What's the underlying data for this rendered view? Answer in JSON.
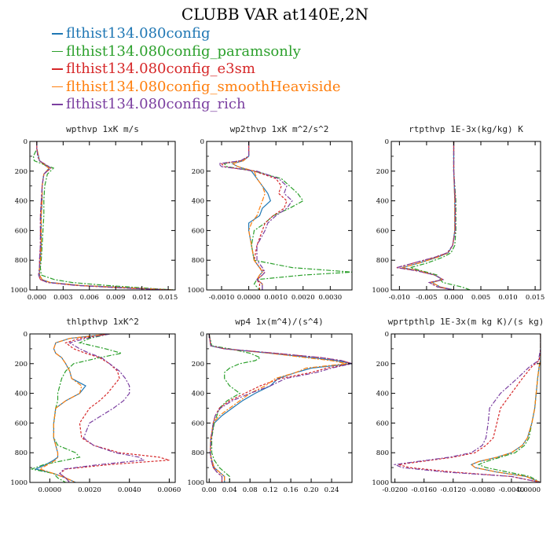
{
  "title": "CLUBB VAR at140E,2N",
  "legend": [
    {
      "label": "flthist134.080config",
      "color": "#1f77b4"
    },
    {
      "label": "flthist134.080config_paramsonly",
      "color": "#2ca02c"
    },
    {
      "label": "flthist134.080config_e3sm",
      "color": "#d62728"
    },
    {
      "label": "flthist134.080config_smoothHeaviside",
      "color": "#ff7f0e"
    },
    {
      "label": "flthist134.080config_rich",
      "color": "#7b3fa0"
    }
  ],
  "chart_data": [
    {
      "type": "line",
      "title": "wpthvp  1xK m/s",
      "xlim": [
        -0.0008,
        0.0158
      ],
      "ylim": [
        1000,
        0
      ],
      "xticks": [
        0.0,
        0.003,
        0.006,
        0.009,
        0.012,
        0.015
      ],
      "xtick_labels": [
        "0.000",
        "0.003",
        "0.006",
        "0.009",
        "0.012",
        "0.015"
      ],
      "yticks": [
        0,
        200,
        400,
        600,
        800,
        1000
      ],
      "y": [
        0,
        50,
        100,
        130,
        160,
        180,
        220,
        300,
        400,
        500,
        600,
        700,
        800,
        850,
        900,
        930,
        950,
        970,
        990,
        1000
      ],
      "series": [
        {
          "values": [
            0.0,
            0.0,
            0.0002,
            0.0003,
            0.0009,
            0.0014,
            0.0008,
            0.0006,
            0.0006,
            0.0005,
            0.0005,
            0.0005,
            0.0004,
            0.0003,
            0.0003,
            0.0006,
            0.0015,
            0.005,
            0.012,
            0.0155
          ]
        },
        {
          "values": [
            0.0,
            0.0,
            -0.0004,
            -0.0003,
            0.001,
            0.0019,
            0.0012,
            0.0009,
            0.0008,
            0.0008,
            0.0007,
            0.0006,
            0.0005,
            0.0004,
            0.0005,
            0.002,
            0.004,
            0.008,
            0.013,
            0.0156
          ]
        },
        {
          "values": [
            0.0,
            0.0,
            0.0001,
            0.0003,
            0.0011,
            0.0016,
            0.0008,
            0.0006,
            0.0005,
            0.0004,
            0.0004,
            0.0004,
            0.0003,
            0.0003,
            0.0002,
            0.0004,
            0.0012,
            0.0045,
            0.011,
            0.0153
          ]
        },
        {
          "values": [
            0.0,
            0.0,
            0.0002,
            0.0003,
            0.0009,
            0.0014,
            0.0008,
            0.0006,
            0.0006,
            0.0005,
            0.0005,
            0.0005,
            0.0004,
            0.0003,
            0.0003,
            0.0006,
            0.0015,
            0.005,
            0.012,
            0.0155
          ]
        },
        {
          "values": [
            0.0,
            0.0,
            0.0001,
            0.0003,
            0.0011,
            0.0016,
            0.0008,
            0.0006,
            0.0005,
            0.0004,
            0.0004,
            0.0004,
            0.0003,
            0.0003,
            0.0002,
            0.0004,
            0.0012,
            0.0045,
            0.011,
            0.0153
          ]
        }
      ]
    },
    {
      "type": "line",
      "title": "wp2thvp  1xK m^2/s^2",
      "xlim": [
        -0.00155,
        0.0038
      ],
      "ylim": [
        1000,
        0
      ],
      "xticks": [
        -0.001,
        0.0,
        0.001,
        0.002,
        0.003
      ],
      "xtick_labels": [
        "-0.0010",
        "0.0000",
        "0.0010",
        "0.0020",
        "0.0030"
      ],
      "yticks": [
        0,
        200,
        400,
        600,
        800,
        1000
      ],
      "y": [
        0,
        100,
        130,
        150,
        170,
        200,
        250,
        300,
        350,
        400,
        450,
        500,
        550,
        600,
        700,
        800,
        850,
        880,
        900,
        930,
        960,
        1000
      ],
      "series": [
        {
          "values": [
            0.0,
            0.0,
            -0.0002,
            -0.0006,
            -0.0004,
            0.0001,
            0.0003,
            0.0005,
            0.0007,
            0.0008,
            0.0005,
            0.0004,
            0.0,
            0.0,
            0.0001,
            0.0002,
            0.0004,
            0.0005,
            0.0004,
            0.0003,
            0.0005,
            0.0005
          ]
        },
        {
          "values": [
            0.0,
            0.0,
            -0.0003,
            -0.0009,
            -0.0008,
            0.0002,
            0.0012,
            0.0015,
            0.0018,
            0.002,
            0.0015,
            0.0009,
            0.0006,
            0.0002,
            0.0001,
            0.0002,
            0.0016,
            0.0038,
            0.002,
            0.0003,
            0.0002,
            0.0004
          ]
        },
        {
          "values": [
            0.0,
            0.0,
            -0.0003,
            -0.001,
            -0.0009,
            0.0002,
            0.001,
            0.0012,
            0.0011,
            0.0014,
            0.0013,
            0.0009,
            0.0006,
            0.0005,
            0.0003,
            0.0002,
            0.0004,
            0.0006,
            0.0005,
            0.0003,
            0.0004,
            0.0004
          ]
        },
        {
          "values": [
            0.0,
            0.0,
            -0.0002,
            -0.0006,
            -0.0004,
            0.0002,
            0.0003,
            0.0005,
            0.0006,
            0.0005,
            0.0004,
            0.0003,
            0.0001,
            0.0,
            0.0001,
            0.0002,
            0.0004,
            0.0005,
            0.0004,
            0.0003,
            0.0005,
            0.0005
          ]
        },
        {
          "values": [
            0.0,
            0.0,
            -0.0003,
            -0.0011,
            -0.001,
            0.0003,
            0.0011,
            0.0014,
            0.0013,
            0.0016,
            0.0014,
            0.001,
            0.0007,
            0.0006,
            0.0003,
            0.0003,
            0.0005,
            0.0006,
            0.0005,
            0.0003,
            0.0005,
            0.0005
          ]
        }
      ]
    },
    {
      "type": "line",
      "title": "rtpthvp  1E-3x(kg/kg) K",
      "xlim": [
        -0.0115,
        0.016
      ],
      "ylim": [
        1000,
        0
      ],
      "xticks": [
        -0.01,
        -0.005,
        0.0,
        0.005,
        0.01,
        0.015
      ],
      "xtick_labels": [
        "-0.010",
        "-0.005",
        "0.000",
        "0.005",
        "0.010",
        "0.015"
      ],
      "yticks": [
        0,
        200,
        400,
        600,
        800,
        1000
      ],
      "y": [
        0,
        200,
        400,
        600,
        700,
        750,
        780,
        820,
        850,
        870,
        900,
        930,
        950,
        980,
        1000
      ],
      "series": [
        {
          "values": [
            0.0,
            0.0,
            0.0002,
            0.0002,
            -0.0002,
            -0.001,
            -0.003,
            -0.0065,
            -0.0095,
            -0.0065,
            -0.0035,
            -0.002,
            -0.004,
            -0.0025,
            0.0
          ]
        },
        {
          "values": [
            0.0,
            0.0,
            0.0004,
            0.0004,
            0.0002,
            -0.0005,
            -0.002,
            -0.005,
            -0.008,
            -0.006,
            -0.003,
            -0.0025,
            -0.002,
            0.0015,
            0.003
          ]
        },
        {
          "values": [
            0.0,
            0.0,
            0.0003,
            0.0003,
            -0.0002,
            -0.0012,
            -0.0035,
            -0.0075,
            -0.0105,
            -0.007,
            -0.0035,
            -0.002,
            -0.0045,
            -0.003,
            0.0
          ]
        },
        {
          "values": [
            0.0,
            0.0,
            0.0002,
            0.0002,
            -0.0002,
            -0.001,
            -0.003,
            -0.0065,
            -0.0095,
            -0.0065,
            -0.0035,
            -0.002,
            -0.004,
            -0.0025,
            0.0
          ]
        },
        {
          "values": [
            0.0,
            0.0,
            0.0003,
            0.0003,
            -0.0002,
            -0.0012,
            -0.0035,
            -0.0075,
            -0.0105,
            -0.007,
            -0.0035,
            -0.002,
            -0.0045,
            -0.003,
            0.0
          ]
        }
      ]
    },
    {
      "type": "line",
      "title": "thlpthvp  1xK^2",
      "xlim": [
        -0.001,
        0.0063
      ],
      "ylim": [
        1000,
        0
      ],
      "xticks": [
        0.0,
        0.002,
        0.004,
        0.006
      ],
      "xtick_labels": [
        "0.0000",
        "0.0020",
        "0.0040",
        "0.0060"
      ],
      "yticks": [
        0,
        200,
        400,
        600,
        800,
        1000
      ],
      "y": [
        0,
        30,
        60,
        100,
        130,
        160,
        200,
        250,
        300,
        350,
        400,
        450,
        500,
        600,
        700,
        750,
        800,
        830,
        850,
        880,
        910,
        940,
        970,
        1000
      ],
      "series": [
        {
          "values": [
            0.003,
            0.001,
            0.0003,
            0.0002,
            0.0003,
            0.0006,
            0.0008,
            0.001,
            0.0011,
            0.0018,
            0.0015,
            0.0008,
            0.0003,
            0.0002,
            0.0002,
            0.0003,
            0.0004,
            0.0004,
            0.0002,
            -0.0002,
            -0.0007,
            0.0002,
            0.0008,
            0.0013
          ]
        },
        {
          "values": [
            0.003,
            0.002,
            0.0015,
            0.0028,
            0.0036,
            0.0025,
            0.0012,
            0.0008,
            0.0006,
            0.0005,
            0.0004,
            0.0004,
            0.0003,
            0.0002,
            0.0002,
            0.0004,
            0.0013,
            0.0015,
            0.0008,
            -0.0003,
            -0.0009,
            0.0002,
            0.0004,
            0.0008
          ]
        },
        {
          "values": [
            0.003,
            0.0015,
            0.0008,
            0.0012,
            0.0018,
            0.0025,
            0.003,
            0.0034,
            0.0035,
            0.0032,
            0.0029,
            0.0025,
            0.002,
            0.0015,
            0.0016,
            0.0022,
            0.0035,
            0.0055,
            0.006,
            0.003,
            0.0008,
            0.0005,
            0.0008,
            0.001
          ]
        },
        {
          "values": [
            0.003,
            0.001,
            0.0003,
            0.0002,
            0.0003,
            0.0006,
            0.0008,
            0.001,
            0.0011,
            0.0016,
            0.0015,
            0.0008,
            0.0003,
            0.0002,
            0.0002,
            0.0003,
            0.0004,
            0.0004,
            0.0003,
            -0.0001,
            -0.0005,
            0.0002,
            0.0008,
            0.0013
          ]
        },
        {
          "values": [
            0.003,
            0.0018,
            0.001,
            0.0015,
            0.002,
            0.0026,
            0.003,
            0.0035,
            0.0038,
            0.004,
            0.004,
            0.0037,
            0.0032,
            0.002,
            0.0017,
            0.0022,
            0.0033,
            0.0045,
            0.0047,
            0.0025,
            0.0007,
            0.0005,
            0.0008,
            0.001
          ]
        }
      ]
    },
    {
      "type": "line",
      "title": "wp4  1x(m^4)/(s^4)",
      "xlim": [
        -0.005,
        0.28
      ],
      "ylim": [
        1000,
        0
      ],
      "xticks": [
        0.0,
        0.04,
        0.08,
        0.12,
        0.16,
        0.2,
        0.24
      ],
      "xtick_labels": [
        "0.00",
        "0.04",
        "0.08",
        "0.12",
        "0.16",
        "0.20",
        "0.24"
      ],
      "yticks": [
        0,
        200,
        400,
        600,
        800,
        1000
      ],
      "y": [
        0,
        80,
        100,
        130,
        160,
        180,
        200,
        230,
        260,
        300,
        350,
        400,
        450,
        500,
        550,
        600,
        700,
        800,
        850,
        900,
        930,
        960,
        1000
      ],
      "series": [
        {
          "values": [
            0.0,
            0.003,
            0.03,
            0.12,
            0.2,
            0.25,
            0.28,
            0.2,
            0.17,
            0.135,
            0.12,
            0.09,
            0.065,
            0.045,
            0.025,
            0.01,
            0.003,
            0.002,
            0.005,
            0.01,
            0.02,
            0.03,
            0.03
          ]
        },
        {
          "values": [
            0.0,
            0.005,
            0.04,
            0.08,
            0.1,
            0.09,
            0.06,
            0.04,
            0.03,
            0.03,
            0.04,
            0.06,
            0.035,
            0.02,
            0.015,
            0.01,
            0.005,
            0.005,
            0.01,
            0.02,
            0.03,
            0.04,
            0.04
          ]
        },
        {
          "values": [
            0.0,
            0.003,
            0.03,
            0.13,
            0.22,
            0.26,
            0.28,
            0.23,
            0.2,
            0.14,
            0.1,
            0.07,
            0.04,
            0.02,
            0.012,
            0.008,
            0.004,
            0.002,
            0.004,
            0.008,
            0.015,
            0.025,
            0.025
          ]
        },
        {
          "values": [
            0.0,
            0.003,
            0.03,
            0.12,
            0.19,
            0.24,
            0.27,
            0.19,
            0.17,
            0.13,
            0.11,
            0.08,
            0.06,
            0.04,
            0.02,
            0.008,
            0.003,
            0.002,
            0.005,
            0.01,
            0.02,
            0.03,
            0.03
          ]
        },
        {
          "values": [
            0.0,
            0.003,
            0.03,
            0.13,
            0.22,
            0.26,
            0.28,
            0.24,
            0.21,
            0.15,
            0.12,
            0.08,
            0.045,
            0.022,
            0.012,
            0.008,
            0.004,
            0.002,
            0.004,
            0.008,
            0.015,
            0.025,
            0.025
          ]
        }
      ]
    },
    {
      "type": "line",
      "title": "wprtpthlp  1E-3x(m kg K)/(s kg)",
      "xlim": [
        -0.0205,
        0.0
      ],
      "ylim": [
        1000,
        0
      ],
      "xticks": [
        -0.02,
        -0.016,
        -0.012,
        -0.008,
        -0.004,
        0.0
      ],
      "xtick_labels": [
        "-0.0200",
        "-0.0160",
        "-0.0120",
        "-0.0080",
        "-0.0040",
        "0.0000"
      ],
      "yticks": [
        0,
        200,
        400,
        600,
        800,
        1000
      ],
      "y": [
        0,
        100,
        180,
        220,
        300,
        400,
        500,
        600,
        700,
        750,
        800,
        830,
        860,
        880,
        900,
        930,
        960,
        1000
      ],
      "series": [
        {
          "values": [
            0.0,
            0.0,
            0.0,
            -0.0002,
            -0.0004,
            -0.0006,
            -0.0008,
            -0.0012,
            -0.0018,
            -0.0025,
            -0.004,
            -0.006,
            -0.0085,
            -0.0095,
            -0.009,
            -0.006,
            -0.002,
            0.0
          ]
        },
        {
          "values": [
            0.0,
            0.0,
            0.0,
            -0.0002,
            -0.0004,
            -0.0006,
            -0.0008,
            -0.0012,
            -0.0016,
            -0.0022,
            -0.0035,
            -0.0055,
            -0.0075,
            -0.0085,
            -0.0075,
            -0.0045,
            -0.0015,
            0.0
          ]
        },
        {
          "values": [
            0.0,
            0.0,
            -0.0002,
            -0.0012,
            -0.0025,
            -0.004,
            -0.0055,
            -0.006,
            -0.0065,
            -0.0075,
            -0.009,
            -0.012,
            -0.0165,
            -0.0195,
            -0.018,
            -0.012,
            -0.004,
            0.0
          ]
        },
        {
          "values": [
            0.0,
            0.0,
            0.0,
            -0.0002,
            -0.0004,
            -0.0006,
            -0.0008,
            -0.0012,
            -0.0018,
            -0.0025,
            -0.004,
            -0.006,
            -0.0085,
            -0.0095,
            -0.009,
            -0.006,
            -0.002,
            0.0
          ]
        },
        {
          "values": [
            0.0,
            0.0,
            -0.0003,
            -0.0015,
            -0.0032,
            -0.0055,
            -0.007,
            -0.0072,
            -0.0075,
            -0.008,
            -0.0095,
            -0.0125,
            -0.017,
            -0.02,
            -0.019,
            -0.013,
            -0.004,
            0.0
          ]
        }
      ]
    }
  ]
}
